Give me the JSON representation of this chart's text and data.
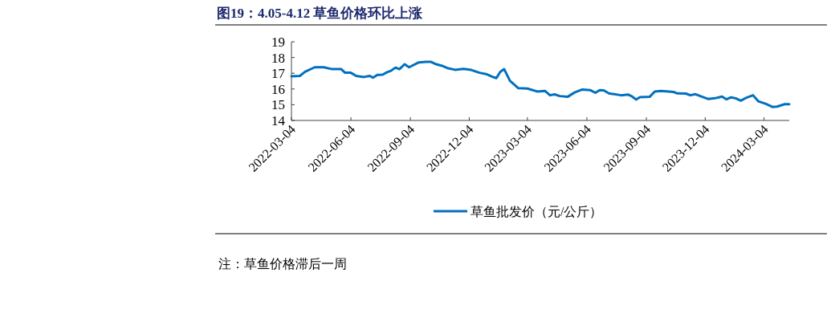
{
  "chart_data": {
    "type": "line",
    "title": "图19：4.05-4.12 草鱼价格环比上涨",
    "xlim": [
      "2022-03-04",
      "2024-04-12"
    ],
    "xticks": [
      "2022-03-04",
      "2022-06-04",
      "2022-09-04",
      "2022-12-04",
      "2023-03-04",
      "2023-06-04",
      "2023-09-04",
      "2023-12-04",
      "2024-03-04"
    ],
    "ylim": [
      14,
      19
    ],
    "yticks": [
      14,
      15,
      16,
      17,
      18,
      19
    ],
    "legend": "bottom",
    "grid": false,
    "line_style": "solid",
    "marker": "none",
    "annotations": [
      "注：草鱼价格滞后一周"
    ],
    "series": [
      {
        "name": "草鱼批发价（元/公斤）",
        "color": "#0070c0",
        "x": [
          "2022-03-04",
          "2022-03-17",
          "2022-03-25",
          "2022-04-09",
          "2022-04-23",
          "2022-05-06",
          "2022-05-20",
          "2022-05-26",
          "2022-06-04",
          "2022-06-12",
          "2022-06-24",
          "2022-07-03",
          "2022-07-08",
          "2022-07-15",
          "2022-07-23",
          "2022-07-30",
          "2022-08-05",
          "2022-08-12",
          "2022-08-18",
          "2022-08-26",
          "2022-09-02",
          "2022-09-17",
          "2022-09-28",
          "2022-10-06",
          "2022-10-14",
          "2022-10-23",
          "2022-10-31",
          "2022-11-12",
          "2022-11-25",
          "2022-12-07",
          "2022-12-20",
          "2022-12-30",
          "2023-01-11",
          "2023-01-15",
          "2023-01-21",
          "2023-01-27",
          "2023-02-05",
          "2023-02-18",
          "2023-03-04",
          "2023-03-19",
          "2023-03-31",
          "2023-04-08",
          "2023-04-15",
          "2023-04-23",
          "2023-05-05",
          "2023-05-16",
          "2023-05-28",
          "2023-06-09",
          "2023-06-17",
          "2023-06-24",
          "2023-06-30",
          "2023-07-08",
          "2023-07-27",
          "2023-08-07",
          "2023-08-13",
          "2023-08-19",
          "2023-08-25",
          "2023-09-09",
          "2023-09-17",
          "2023-09-27",
          "2023-10-16",
          "2023-10-22",
          "2023-11-04",
          "2023-11-11",
          "2023-11-19",
          "2023-11-28",
          "2023-12-09",
          "2023-12-19",
          "2023-12-30",
          "2024-01-06",
          "2024-01-13",
          "2024-01-20",
          "2024-01-28",
          "2024-02-05",
          "2024-02-16",
          "2024-02-24",
          "2024-03-07",
          "2024-03-17",
          "2024-03-24",
          "2024-04-05",
          "2024-04-12"
        ],
        "values": [
          16.81,
          16.83,
          17.09,
          17.38,
          17.38,
          17.26,
          17.26,
          17.03,
          17.03,
          16.83,
          16.76,
          16.83,
          16.72,
          16.9,
          16.91,
          17.07,
          17.16,
          17.36,
          17.26,
          17.57,
          17.38,
          17.69,
          17.72,
          17.72,
          17.57,
          17.47,
          17.33,
          17.22,
          17.28,
          17.21,
          17.03,
          16.95,
          16.74,
          16.69,
          17.09,
          17.26,
          16.52,
          16.05,
          16.03,
          15.84,
          15.88,
          15.6,
          15.66,
          15.55,
          15.5,
          15.78,
          15.97,
          15.93,
          15.76,
          15.93,
          15.91,
          15.72,
          15.6,
          15.64,
          15.52,
          15.33,
          15.48,
          15.5,
          15.84,
          15.88,
          15.81,
          15.72,
          15.71,
          15.6,
          15.67,
          15.52,
          15.36,
          15.41,
          15.52,
          15.34,
          15.47,
          15.41,
          15.26,
          15.43,
          15.6,
          15.22,
          15.05,
          14.86,
          14.88,
          15.03,
          15.03
        ]
      }
    ]
  }
}
